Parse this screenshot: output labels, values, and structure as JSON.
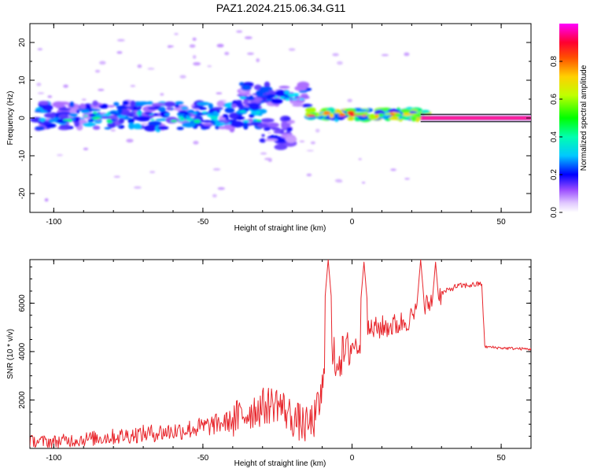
{
  "title": "PAZ1.2024.215.06.34.G11",
  "chart_data": [
    {
      "type": "heatmap",
      "xlabel": "Height of straight line (km)",
      "ylabel": "Frequency (Hz)",
      "xlim": [
        -108,
        60
      ],
      "ylim": [
        -25,
        25
      ],
      "xticks": [
        -100,
        -50,
        0,
        50
      ],
      "yticks": [
        -20,
        -10,
        0,
        10,
        20
      ],
      "colorbar": {
        "label": "Normalized spectral amplitude",
        "range": [
          0,
          1
        ],
        "ticks": [
          "0.0",
          "0.2",
          "0.4",
          "0.6",
          "0.8"
        ],
        "colors": [
          "#ffffff",
          "#b070ff",
          "#0000ff",
          "#00e0ff",
          "#00ff40",
          "#a0ff00",
          "#ffd000",
          "#ff0000",
          "#ff00ff"
        ]
      },
      "features": [
        {
          "name": "diffuse band",
          "x": [
            -106,
            -30
          ],
          "freq_center": 0.5,
          "freq_spread": 3.5,
          "amplitude": 0.3
        },
        {
          "name": "upper branch",
          "x": [
            -38,
            -15
          ],
          "freq_center": 6,
          "freq_spread": 3,
          "amplitude": 0.25
        },
        {
          "name": "lower branch",
          "x": [
            -30,
            -20
          ],
          "freq_center": -4,
          "freq_spread": 4,
          "amplitude": 0.2
        },
        {
          "name": "converging segment",
          "x": [
            -15,
            25
          ],
          "freq_center": 1,
          "freq_spread": 1.2,
          "amplitude": 0.6
        },
        {
          "name": "steady tone",
          "x": [
            23,
            60
          ],
          "freq_center": 0,
          "freq_spread": 0.6,
          "amplitude": 0.95
        }
      ]
    },
    {
      "type": "line",
      "xlabel": "Height of straight line (km)",
      "ylabel": "SNR (10 * v/v)",
      "xlim": [
        -108,
        60
      ],
      "ylim": [
        0,
        7800
      ],
      "xticks": [
        -100,
        -50,
        0,
        50
      ],
      "yticks": [
        2000,
        4000,
        6000
      ],
      "color": "#e8262c",
      "series": [
        {
          "values": [
            [
              -108,
              300
            ],
            [
              -100,
              280
            ],
            [
              -90,
              380
            ],
            [
              -80,
              480
            ],
            [
              -70,
              600
            ],
            [
              -60,
              700
            ],
            [
              -50,
              880
            ],
            [
              -40,
              1150
            ],
            [
              -33,
              1600
            ],
            [
              -25,
              1900
            ],
            [
              -20,
              1250
            ],
            [
              -15,
              900
            ],
            [
              -12,
              1300
            ],
            [
              -10,
              2400
            ],
            [
              -8,
              3800
            ],
            [
              -5,
              3700
            ],
            [
              -2,
              3900
            ],
            [
              0,
              4300
            ],
            [
              3,
              4200
            ],
            [
              6,
              4900
            ],
            [
              10,
              5000
            ],
            [
              15,
              5100
            ],
            [
              20,
              5400
            ],
            [
              25,
              5900
            ],
            [
              30,
              6400
            ],
            [
              35,
              6700
            ],
            [
              40,
              6750
            ],
            [
              43.5,
              6800
            ],
            [
              44.5,
              4200
            ],
            [
              50,
              4150
            ],
            [
              60,
              4100
            ]
          ]
        }
      ],
      "spikes": [
        {
          "x": -8,
          "value": 7800
        },
        {
          "x": 4,
          "value": 7700
        },
        {
          "x": 23,
          "value": 7800
        },
        {
          "x": 28,
          "value": 7700
        }
      ]
    }
  ]
}
